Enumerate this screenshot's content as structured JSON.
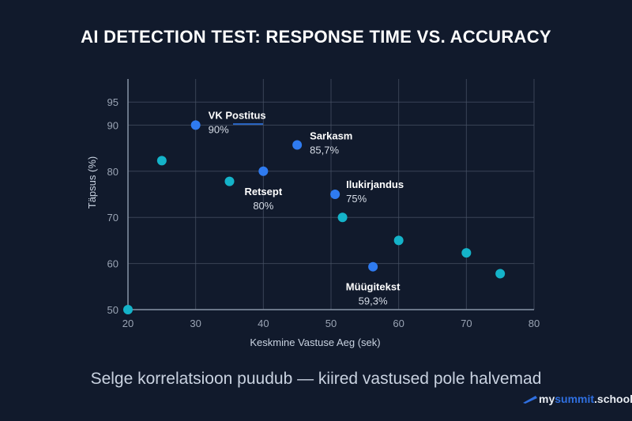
{
  "chart_data": {
    "type": "scatter",
    "title": "AI DETECTION TEST: RESPONSE TIME VS. ACCURACY",
    "subtitle": "Selge korrelatsioon puudub — kiired vastused pole halvemad",
    "xlabel": "Keskmine Vastuse Aeg (sek)",
    "ylabel": "Täpsus (%)",
    "xlim": [
      20,
      80
    ],
    "ylim": [
      50,
      100
    ],
    "xticks": [
      "20",
      "30",
      "40",
      "50",
      "60",
      "70",
      "80"
    ],
    "yticks": [
      "50",
      "60",
      "70",
      "80",
      "90",
      "95"
    ],
    "grid": true,
    "colors": {
      "highlighted": "#2f7bf0",
      "other": "#14b3c9",
      "background": "#111a2c",
      "grid": "#4a5568"
    },
    "highlighted_points": [
      {
        "label": "VK Postitus",
        "value_label": "90%",
        "x": 30,
        "y": 90
      },
      {
        "label": "Sarkasm",
        "value_label": "85,7%",
        "x": 45,
        "y": 85.7
      },
      {
        "label": "Retsept",
        "value_label": "80%",
        "x": 40,
        "y": 80
      },
      {
        "label": "Ilukirjandus",
        "value_label": "75%",
        "x": 50.6,
        "y": 75
      },
      {
        "label": "Müügitekst",
        "value_label": "59,3%",
        "x": 56.2,
        "y": 59.3
      }
    ],
    "other_points": [
      {
        "x": 20,
        "y": 50
      },
      {
        "x": 25,
        "y": 82.3
      },
      {
        "x": 35,
        "y": 77.8
      },
      {
        "x": 51.7,
        "y": 70
      },
      {
        "x": 60,
        "y": 65
      },
      {
        "x": 70,
        "y": 62.3
      },
      {
        "x": 75,
        "y": 57.8
      }
    ]
  },
  "logo": {
    "part1": "my",
    "part2": "summit",
    "part3": ".school"
  }
}
